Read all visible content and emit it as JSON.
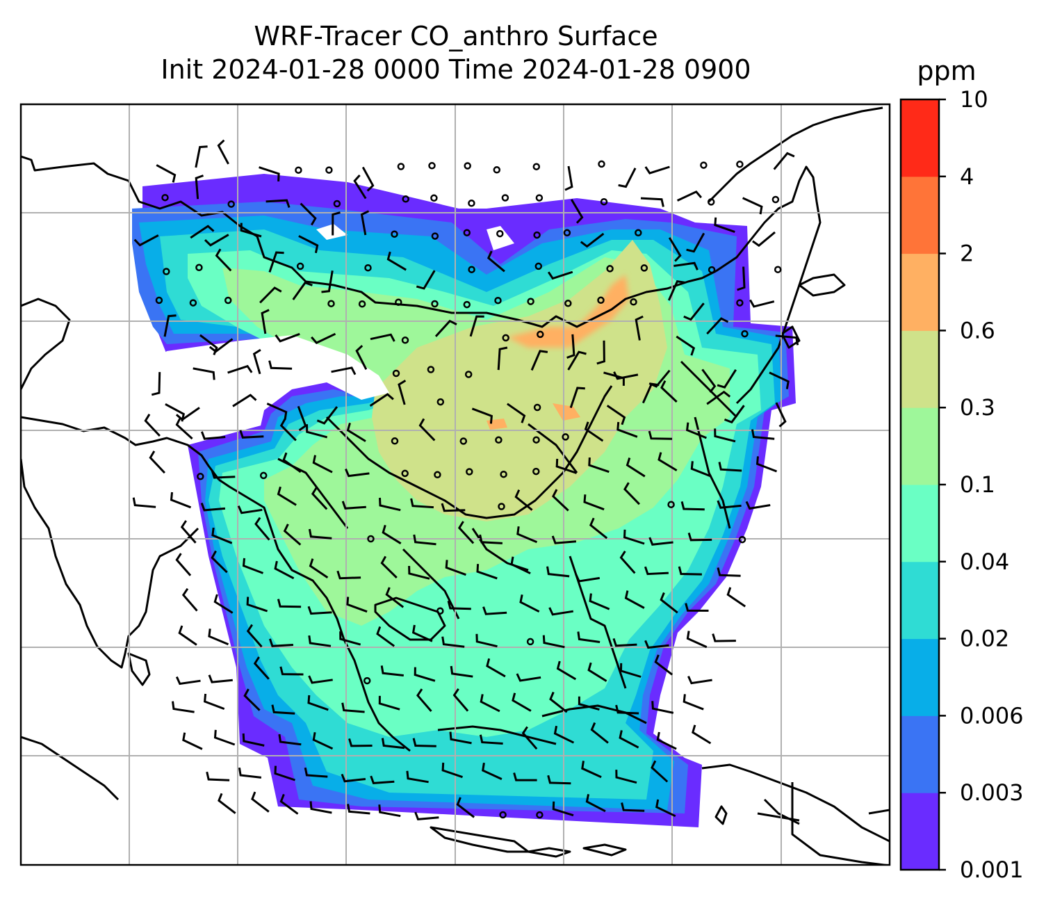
{
  "title": {
    "line1": "WRF-Tracer CO_anthro Surface",
    "line2": "Init 2024-01-28 0000 Time 2024-01-28 0900"
  },
  "colorbar": {
    "unit": "ppm",
    "levels": [
      "0.001",
      "0.003",
      "0.006",
      "0.02",
      "0.04",
      "0.1",
      "0.3",
      "0.6",
      "2",
      "4",
      "10"
    ],
    "colors": [
      "#6a2cff",
      "#3a74f4",
      "#08aee8",
      "#2fdcd4",
      "#6affc4",
      "#9ef79a",
      "#cfe28a",
      "#ffb062",
      "#ff7438",
      "#ff2a18"
    ]
  },
  "map": {
    "field": "CO_anthro",
    "level": "Surface",
    "gridlines": true,
    "overlays": [
      "coastlines",
      "wind-barbs"
    ]
  }
}
